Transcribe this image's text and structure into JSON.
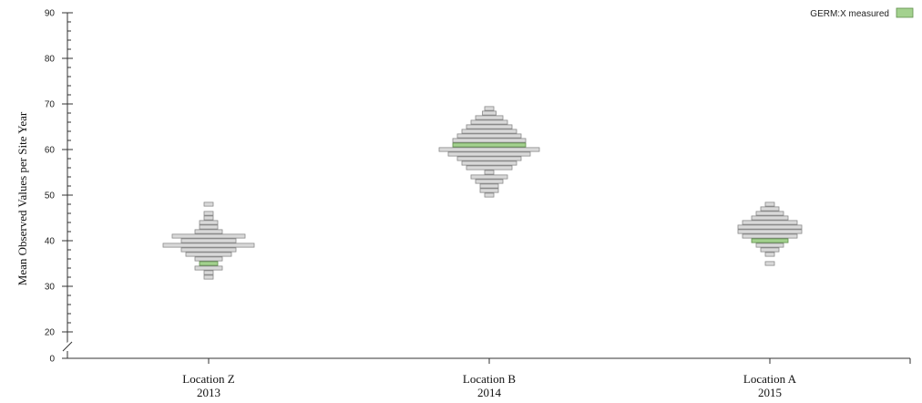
{
  "chart_data": {
    "type": "bar",
    "ylabel": "Mean Observed Values per Site Year",
    "ylim": [
      0,
      90
    ],
    "axis_break": [
      0,
      20
    ],
    "y_ticks": [
      0,
      20,
      30,
      40,
      50,
      60,
      70,
      80,
      90
    ],
    "legend": {
      "label": "GERM:X measured",
      "color": "#a3d18e",
      "placement": "top-right"
    },
    "colors": {
      "bar_fill": "#d9d9d9",
      "bar_stroke": "#8a8a8a",
      "highlight_fill": "#a3d18e",
      "highlight_stroke": "#5f8e4c",
      "axis": "#333333"
    },
    "groups": [
      {
        "name": "Location Z",
        "year": "2013",
        "highlight_value": 35,
        "distribution": [
          {
            "value": 48,
            "count": 1
          },
          {
            "value": 46,
            "count": 1
          },
          {
            "value": 45,
            "count": 1
          },
          {
            "value": 44,
            "count": 2
          },
          {
            "value": 43,
            "count": 2
          },
          {
            "value": 42,
            "count": 3
          },
          {
            "value": 41,
            "count": 8
          },
          {
            "value": 40,
            "count": 6
          },
          {
            "value": 39,
            "count": 10
          },
          {
            "value": 38,
            "count": 6
          },
          {
            "value": 37,
            "count": 5
          },
          {
            "value": 36,
            "count": 3
          },
          {
            "value": 35,
            "count": 2
          },
          {
            "value": 34,
            "count": 3
          },
          {
            "value": 33,
            "count": 1
          },
          {
            "value": 32,
            "count": 1
          }
        ]
      },
      {
        "name": "Location B",
        "year": "2014",
        "highlight_value": 61,
        "distribution": [
          {
            "value": 69,
            "count": 1
          },
          {
            "value": 68,
            "count": 1.5
          },
          {
            "value": 67,
            "count": 3
          },
          {
            "value": 66,
            "count": 4
          },
          {
            "value": 65,
            "count": 5
          },
          {
            "value": 64,
            "count": 6
          },
          {
            "value": 63,
            "count": 7
          },
          {
            "value": 62,
            "count": 8
          },
          {
            "value": 61,
            "count": 8
          },
          {
            "value": 60,
            "count": 11
          },
          {
            "value": 59,
            "count": 9
          },
          {
            "value": 58,
            "count": 7
          },
          {
            "value": 57,
            "count": 6
          },
          {
            "value": 56,
            "count": 5
          },
          {
            "value": 55,
            "count": 1
          },
          {
            "value": 54,
            "count": 4
          },
          {
            "value": 53,
            "count": 3
          },
          {
            "value": 52,
            "count": 2
          },
          {
            "value": 51,
            "count": 2
          },
          {
            "value": 50,
            "count": 1
          }
        ]
      },
      {
        "name": "Location A",
        "year": "2015",
        "highlight_value": 40,
        "distribution": [
          {
            "value": 48,
            "count": 1
          },
          {
            "value": 47,
            "count": 2
          },
          {
            "value": 46,
            "count": 3
          },
          {
            "value": 45,
            "count": 4
          },
          {
            "value": 44,
            "count": 6
          },
          {
            "value": 43,
            "count": 7
          },
          {
            "value": 42,
            "count": 7
          },
          {
            "value": 41,
            "count": 6
          },
          {
            "value": 40,
            "count": 4
          },
          {
            "value": 39,
            "count": 3
          },
          {
            "value": 38,
            "count": 2
          },
          {
            "value": 37,
            "count": 1
          },
          {
            "value": 35,
            "count": 1
          }
        ]
      }
    ]
  }
}
